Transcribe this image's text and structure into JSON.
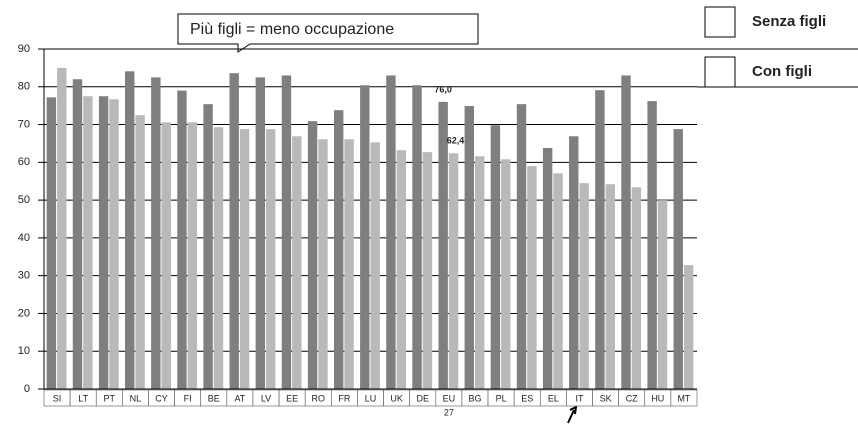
{
  "chart_data": {
    "type": "bar",
    "annotation": "Più figli = meno occupazione",
    "footnote": "27",
    "categories": [
      "SI",
      "LT",
      "PT",
      "NL",
      "CY",
      "FI",
      "BE",
      "AT",
      "LV",
      "EE",
      "RO",
      "FR",
      "LU",
      "UK",
      "DE",
      "EU",
      "BG",
      "PL",
      "ES",
      "EL",
      "IT",
      "SK",
      "CZ",
      "HU",
      "MT"
    ],
    "series": [
      {
        "name": "Senza figli",
        "color": "#7f7f7f",
        "values": [
          77.2,
          82,
          77.5,
          84.1,
          82.5,
          79,
          75.4,
          83.6,
          82.5,
          83,
          70.9,
          73.8,
          80.4,
          83,
          80.4,
          76.0,
          74.9,
          69.8,
          75.4,
          63.8,
          66.9,
          79.1,
          83,
          76.2,
          68.8
        ],
        "value_labels": [
          null,
          null,
          null,
          null,
          null,
          null,
          null,
          null,
          null,
          null,
          null,
          null,
          null,
          null,
          null,
          "76,0",
          null,
          null,
          null,
          null,
          null,
          null,
          null,
          null,
          null
        ]
      },
      {
        "name": "Con figli",
        "color": "#b9b9b9",
        "values": [
          85,
          77.5,
          76.7,
          72.5,
          70.6,
          70.6,
          69.3,
          68.8,
          68.8,
          66.9,
          66.1,
          66.1,
          65.3,
          63.2,
          62.7,
          62.4,
          61.6,
          60.8,
          59,
          57.1,
          54.5,
          54.2,
          53.4,
          50,
          32.8
        ],
        "value_labels": [
          null,
          null,
          null,
          null,
          null,
          null,
          null,
          null,
          null,
          null,
          null,
          null,
          null,
          null,
          null,
          "62,4",
          null,
          null,
          null,
          null,
          null,
          null,
          null,
          null,
          null
        ]
      }
    ],
    "ylim": [
      0,
      90
    ],
    "yticks": [
      0,
      10,
      20,
      30,
      40,
      50,
      60,
      70,
      80,
      90
    ],
    "grid": true
  }
}
